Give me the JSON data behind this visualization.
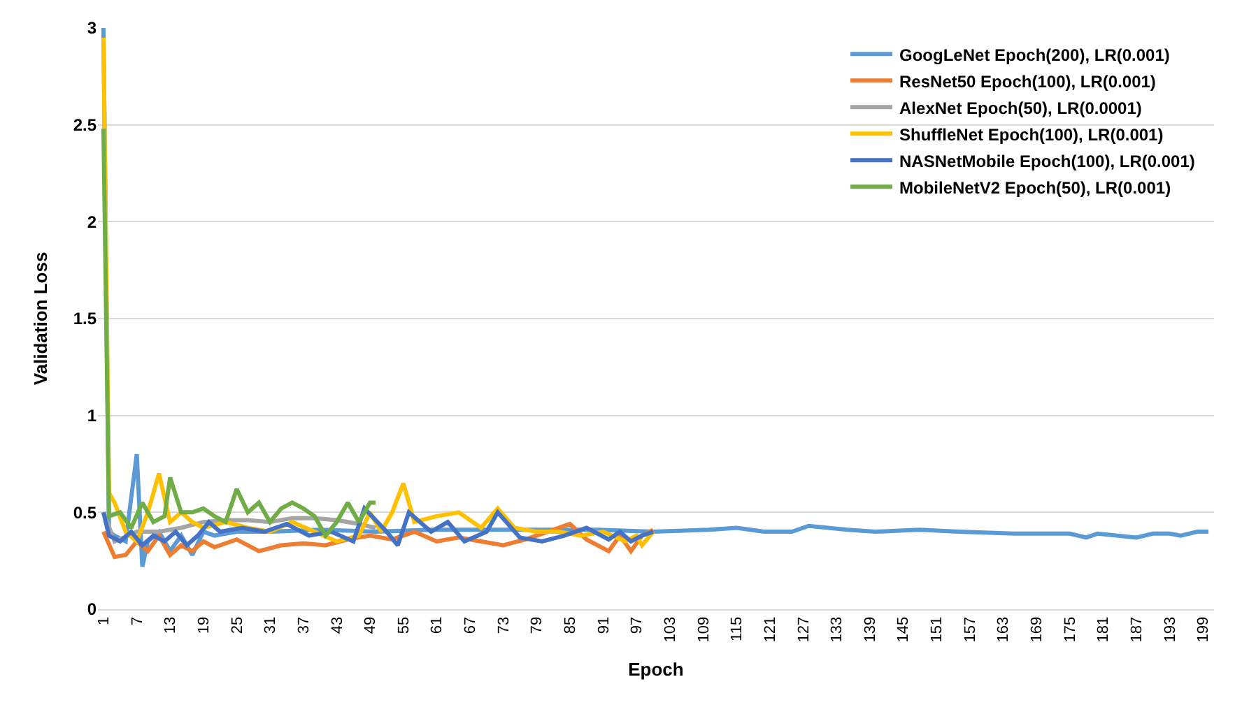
{
  "chart_data": {
    "type": "line",
    "xlabel": "Epoch",
    "ylabel": "Validation Loss",
    "xlim": [
      0,
      201
    ],
    "xticks": [
      1,
      7,
      13,
      19,
      25,
      31,
      37,
      43,
      49,
      55,
      61,
      67,
      73,
      79,
      85,
      91,
      97,
      103,
      109,
      115,
      121,
      127,
      133,
      139,
      145,
      151,
      157,
      163,
      169,
      175,
      181,
      187,
      193,
      199
    ],
    "ylim": [
      0,
      3
    ],
    "yticks": [
      0,
      0.5,
      1,
      {
        "value": 1.5,
        "label": "1.5"
      },
      2,
      {
        "value": 2.5,
        "label": "2.5"
      },
      3
    ],
    "grid": "y",
    "legend": "top right",
    "marker": "none",
    "line_style": "solid",
    "series": [
      {
        "name": "GoogLeNet Epoch(200), LR(0.001)",
        "color": "#5b9bd5",
        "x": [
          1,
          2,
          3,
          5,
          7,
          8,
          9,
          11,
          13,
          15,
          17,
          19,
          21,
          25,
          31,
          40,
          50,
          60,
          70,
          80,
          90,
          100,
          110,
          115,
          120,
          125,
          128,
          135,
          140,
          148,
          155,
          165,
          175,
          178,
          180,
          187,
          190,
          193,
          195,
          198,
          200
        ],
        "values": [
          3.0,
          0.4,
          0.38,
          0.35,
          0.8,
          0.22,
          0.35,
          0.4,
          0.3,
          0.38,
          0.28,
          0.4,
          0.38,
          0.4,
          0.4,
          0.41,
          0.4,
          0.41,
          0.41,
          0.41,
          0.41,
          0.4,
          0.41,
          0.42,
          0.4,
          0.4,
          0.43,
          0.41,
          0.4,
          0.41,
          0.4,
          0.39,
          0.39,
          0.37,
          0.39,
          0.37,
          0.39,
          0.39,
          0.38,
          0.4,
          0.4
        ]
      },
      {
        "name": "ResNet50 Epoch(100), LR(0.001)",
        "color": "#ed7d31",
        "x": [
          1,
          3,
          5,
          7,
          9,
          11,
          13,
          15,
          17,
          19,
          21,
          25,
          29,
          33,
          37,
          41,
          45,
          49,
          53,
          57,
          61,
          65,
          69,
          73,
          77,
          81,
          85,
          88,
          92,
          94,
          96,
          98,
          100
        ],
        "values": [
          0.4,
          0.27,
          0.28,
          0.35,
          0.3,
          0.38,
          0.28,
          0.33,
          0.3,
          0.35,
          0.32,
          0.36,
          0.3,
          0.33,
          0.34,
          0.33,
          0.36,
          0.38,
          0.36,
          0.4,
          0.35,
          0.37,
          0.35,
          0.33,
          0.36,
          0.4,
          0.44,
          0.36,
          0.3,
          0.38,
          0.3,
          0.38,
          0.41
        ]
      },
      {
        "name": "AlexNet Epoch(50), LR(0.0001)",
        "color": "#a5a5a5",
        "x": [
          1,
          3,
          7,
          11,
          15,
          19,
          23,
          27,
          31,
          35,
          39,
          43,
          47,
          50
        ],
        "values": [
          0.5,
          0.35,
          0.4,
          0.4,
          0.42,
          0.45,
          0.46,
          0.46,
          0.45,
          0.47,
          0.47,
          0.46,
          0.44,
          0.42
        ]
      },
      {
        "name": "ShuffleNet Epoch(100), LR(0.001)",
        "color": "#ffc000",
        "x": [
          1,
          2,
          3,
          5,
          7,
          9,
          11,
          13,
          15,
          17,
          19,
          23,
          27,
          31,
          35,
          39,
          43,
          47,
          49,
          51,
          53,
          55,
          57,
          61,
          65,
          69,
          72,
          75,
          79,
          83,
          87,
          91,
          95,
          97,
          98,
          100
        ],
        "values": [
          2.95,
          0.6,
          0.55,
          0.4,
          0.35,
          0.5,
          0.7,
          0.45,
          0.5,
          0.45,
          0.42,
          0.45,
          0.42,
          0.4,
          0.45,
          0.4,
          0.35,
          0.38,
          0.5,
          0.4,
          0.5,
          0.65,
          0.45,
          0.48,
          0.5,
          0.42,
          0.52,
          0.42,
          0.4,
          0.4,
          0.38,
          0.4,
          0.35,
          0.38,
          0.33,
          0.4
        ]
      },
      {
        "name": "NASNetMobile Epoch(100), LR(0.001)",
        "color": "#4472c4",
        "x": [
          1,
          2,
          4,
          6,
          8,
          10,
          12,
          14,
          16,
          18,
          20,
          22,
          26,
          30,
          34,
          38,
          42,
          46,
          48,
          52,
          54,
          56,
          60,
          63,
          66,
          70,
          72,
          76,
          80,
          84,
          88,
          92,
          94,
          96,
          98,
          100
        ],
        "values": [
          0.5,
          0.38,
          0.35,
          0.4,
          0.33,
          0.38,
          0.35,
          0.4,
          0.33,
          0.38,
          0.45,
          0.4,
          0.42,
          0.4,
          0.44,
          0.38,
          0.4,
          0.35,
          0.52,
          0.4,
          0.33,
          0.5,
          0.4,
          0.45,
          0.35,
          0.4,
          0.5,
          0.37,
          0.35,
          0.38,
          0.42,
          0.36,
          0.4,
          0.35,
          0.38,
          0.4
        ]
      },
      {
        "name": "MobileNetV2 Epoch(50), LR(0.001)",
        "color": "#70ad47",
        "x": [
          1,
          2,
          4,
          6,
          8,
          10,
          12,
          13,
          15,
          17,
          19,
          21,
          23,
          25,
          27,
          29,
          31,
          33,
          35,
          37,
          39,
          41,
          43,
          45,
          47,
          49,
          50
        ],
        "values": [
          2.48,
          0.48,
          0.5,
          0.42,
          0.55,
          0.45,
          0.48,
          0.68,
          0.5,
          0.5,
          0.52,
          0.48,
          0.45,
          0.62,
          0.5,
          0.55,
          0.45,
          0.52,
          0.55,
          0.52,
          0.48,
          0.38,
          0.45,
          0.55,
          0.45,
          0.55,
          0.55
        ]
      }
    ]
  }
}
